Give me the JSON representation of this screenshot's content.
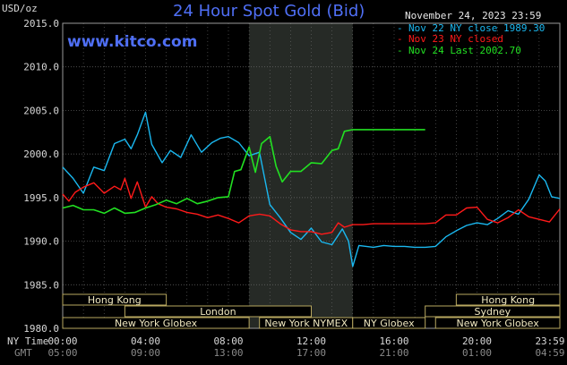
{
  "header": {
    "unit": "USD/oz",
    "title": "24 Hour Spot Gold (Bid)",
    "site": "www.kitco.com",
    "date": "November 24, 2023 23:59"
  },
  "axes": {
    "time_row_label": "NY Time",
    "gmt_row_label": "GMT",
    "ny_ticks": [
      "00:00",
      "04:00",
      "08:00",
      "12:00",
      "16:00",
      "20:00",
      "23:59"
    ],
    "gmt_ticks": [
      "05:00",
      "09:00",
      "13:00",
      "17:00",
      "21:00",
      "01:00",
      "04:59"
    ],
    "y_ticks": [
      "2015.0",
      "2010.0",
      "2005.0",
      "2000.0",
      "1995.0",
      "1990.0",
      "1985.0",
      "1980.0"
    ]
  },
  "markets": [
    {
      "label": "Hong Kong",
      "start": 0,
      "end": 5,
      "row": 0
    },
    {
      "label": "London",
      "start": 3,
      "end": 12,
      "row": 1
    },
    {
      "label": "New York Globex",
      "start": 0,
      "end": 9,
      "row": 2
    },
    {
      "label": "New York NYMEX",
      "start": 9.5,
      "end": 14,
      "row": 2
    },
    {
      "label": "NY Globex",
      "start": 14,
      "end": 17.5,
      "row": 2
    },
    {
      "label": "Hong Kong",
      "start": 19,
      "end": 24,
      "row": 0
    },
    {
      "label": "Sydney",
      "start": 17.5,
      "end": 24,
      "row": 1
    },
    {
      "label": "New York Globex",
      "start": 18,
      "end": 24,
      "row": 2
    }
  ],
  "colors": {
    "nov22": "#1ab8f0",
    "nov23": "#ff1a1a",
    "nov24": "#22e022",
    "shade": "#262a26",
    "grid": "#6a6a6a",
    "market_border": "#b8a860"
  },
  "chart_data": {
    "type": "line",
    "title": "24 Hour Spot Gold (Bid)",
    "ylabel": "USD/oz",
    "xlabel": "NY Time",
    "x_unit": "hours (NY time)",
    "xlim": [
      0,
      24
    ],
    "ylim": [
      1980,
      2015
    ],
    "grid": true,
    "legend_position": "top-right",
    "shaded_region_hours": [
      9,
      14
    ],
    "series": [
      {
        "name": "Nov 22 NY close 1989.30",
        "color": "#1ab8f0",
        "x": [
          0,
          0.5,
          1,
          1.5,
          2,
          2.5,
          3,
          3.3,
          3.6,
          4,
          4.3,
          4.8,
          5.2,
          5.7,
          6.2,
          6.7,
          7.2,
          7.6,
          8,
          8.5,
          9,
          9.5,
          10,
          10.5,
          11,
          11.5,
          12,
          12.5,
          13,
          13.5,
          13.8,
          14,
          14.3,
          15,
          15.5,
          16,
          16.5,
          17,
          17.5,
          18,
          18.5,
          19,
          19.5,
          20,
          20.5,
          21,
          21.5,
          22,
          22.5,
          23,
          23.3,
          23.6,
          24
        ],
        "y": [
          1998.5,
          1997.2,
          1995.5,
          1998.5,
          1998.1,
          2001.2,
          2001.7,
          2000.6,
          2002.2,
          2004.8,
          2001.1,
          1999.0,
          2000.4,
          1999.6,
          2002.2,
          2000.2,
          2001.3,
          2001.8,
          2002.0,
          2001.3,
          1999.8,
          2000.2,
          1994.2,
          1992.7,
          1991.0,
          1990.2,
          1991.5,
          1989.9,
          1989.6,
          1991.4,
          1990.0,
          1987.1,
          1989.5,
          1989.3,
          1989.5,
          1989.4,
          1989.4,
          1989.3,
          1989.3,
          1989.4,
          1990.5,
          1991.2,
          1991.8,
          1992.1,
          1991.9,
          1992.6,
          1993.5,
          1993.1,
          1994.8,
          1997.6,
          1996.9,
          1995.1,
          1994.9
        ]
      },
      {
        "name": "Nov 23 NY closed",
        "color": "#ff1a1a",
        "x": [
          0,
          0.3,
          0.6,
          1,
          1.5,
          2,
          2.5,
          2.8,
          3,
          3.3,
          3.6,
          4,
          4.3,
          4.6,
          5,
          5.5,
          6,
          6.5,
          7,
          7.5,
          8,
          8.5,
          9,
          9.5,
          10,
          10.5,
          11,
          11.5,
          12,
          12.5,
          13,
          13.3,
          13.6,
          14,
          14.5,
          15,
          15.5,
          16,
          16.5,
          17,
          17.5,
          18,
          18.5,
          19,
          19.5,
          20,
          20.5,
          21,
          21.5,
          22,
          22.5,
          23,
          23.5,
          24
        ],
        "y": [
          1995.4,
          1994.6,
          1995.6,
          1996.2,
          1996.7,
          1995.5,
          1996.3,
          1995.9,
          1997.2,
          1994.9,
          1996.8,
          1993.9,
          1995.1,
          1994.3,
          1993.9,
          1993.7,
          1993.3,
          1993.1,
          1992.7,
          1993.0,
          1992.6,
          1992.1,
          1992.9,
          1993.1,
          1992.9,
          1992.0,
          1991.3,
          1991.1,
          1991.1,
          1990.8,
          1991.0,
          1992.1,
          1991.6,
          1991.9,
          1991.9,
          1992.0,
          1992.0,
          1992.0,
          1992.0,
          1992.0,
          1992.0,
          1992.1,
          1993.0,
          1993.0,
          1993.8,
          1993.9,
          1992.5,
          1992.1,
          1992.7,
          1993.6,
          1992.8,
          1992.5,
          1992.2,
          1993.7
        ]
      },
      {
        "name": "Nov 24 Last 2002.70",
        "color": "#22e022",
        "x": [
          0,
          0.5,
          1,
          1.5,
          2,
          2.5,
          3,
          3.5,
          4,
          4.5,
          5,
          5.5,
          6,
          6.5,
          7,
          7.5,
          8,
          8.3,
          8.6,
          9,
          9.3,
          9.6,
          10,
          10.3,
          10.6,
          11,
          11.5,
          12,
          12.5,
          13,
          13.3,
          13.6,
          14,
          14.5,
          15,
          15.5,
          16,
          16.5,
          17,
          17.5
        ],
        "y": [
          1993.8,
          1994.1,
          1993.6,
          1993.6,
          1993.2,
          1993.8,
          1993.2,
          1993.3,
          1993.8,
          1994.2,
          1994.7,
          1994.3,
          1994.9,
          1994.3,
          1994.6,
          1995.0,
          1995.1,
          1998.0,
          1998.2,
          2000.8,
          1997.9,
          2001.2,
          2002.0,
          1998.6,
          1996.8,
          1998.0,
          1998.0,
          1999.0,
          1998.9,
          2000.4,
          2000.6,
          2002.6,
          2002.8,
          2002.8,
          2002.8,
          2002.8,
          2002.8,
          2002.8,
          2002.8,
          2002.8
        ]
      }
    ]
  }
}
